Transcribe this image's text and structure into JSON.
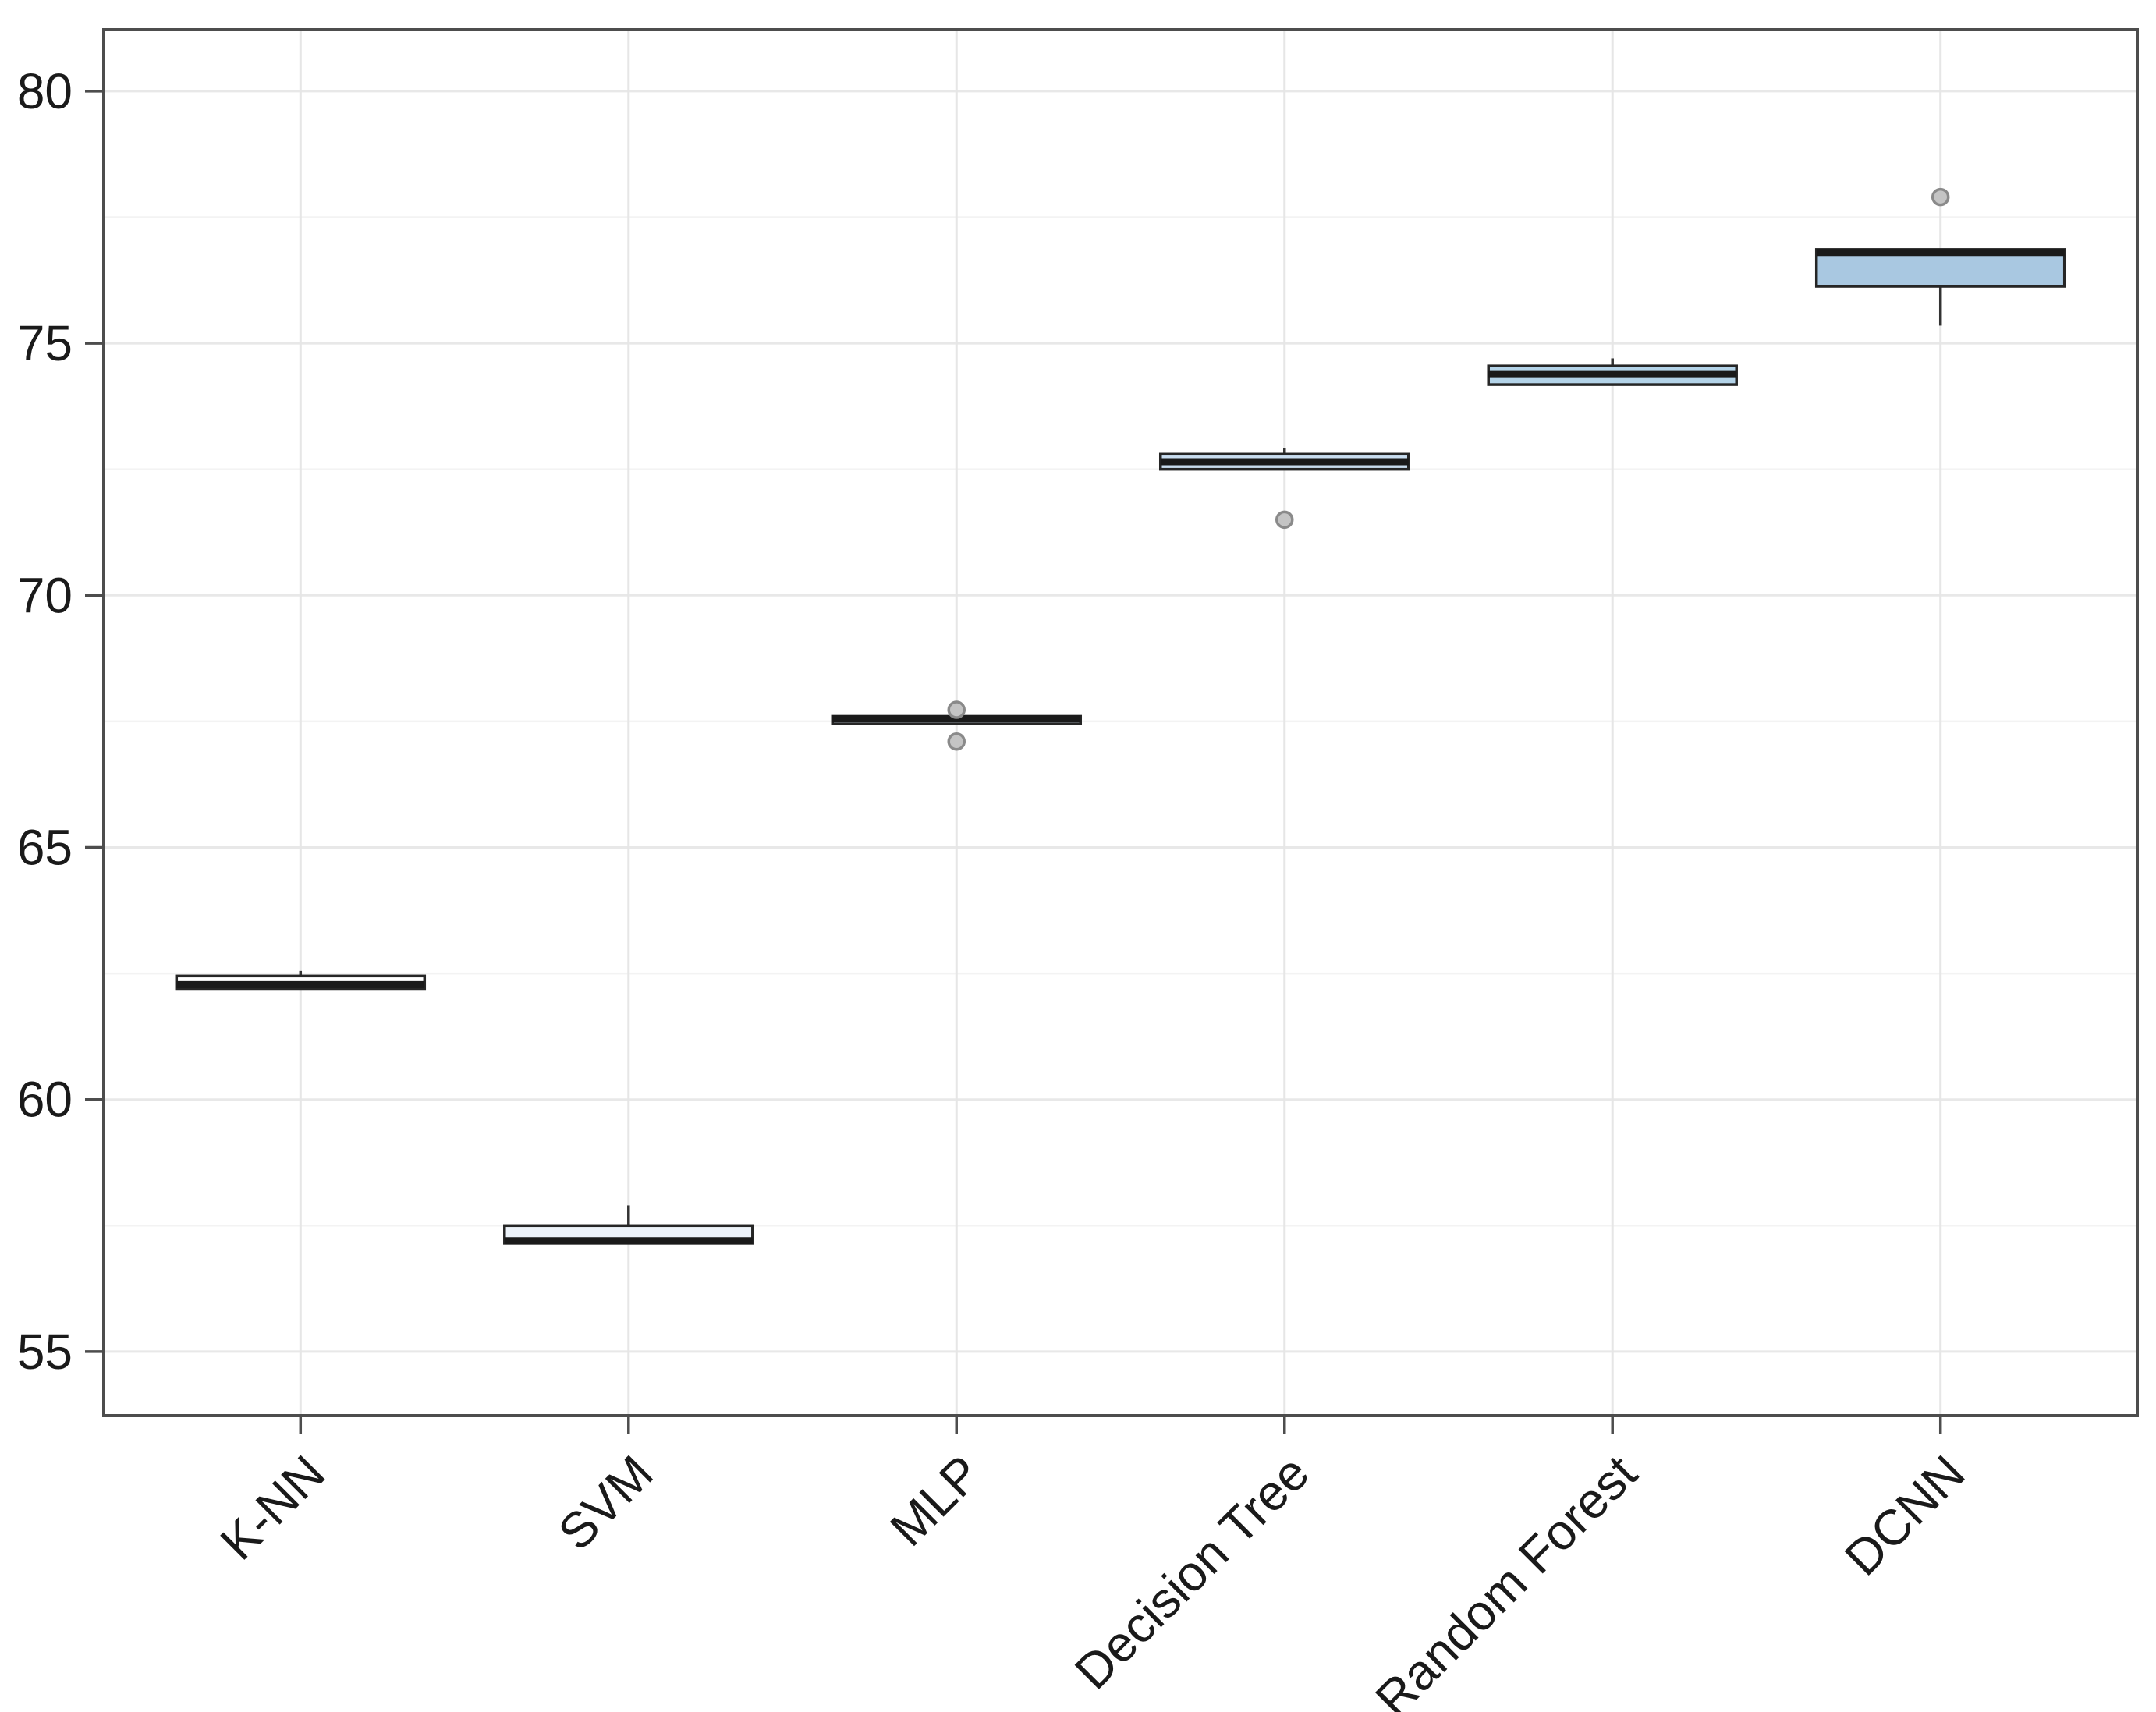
{
  "chart_data": {
    "type": "boxplot",
    "title": "",
    "xlabel": "",
    "ylabel": "",
    "categories": [
      "K-NN",
      "SVM",
      "MLP",
      "Decision Tree",
      "Random Forest",
      "DCNN"
    ],
    "series": [
      {
        "name": "K-NN",
        "whisker_low": 62.2,
        "q1": 62.2,
        "median": 62.28,
        "q3": 62.45,
        "whisker_high": 62.55,
        "outliers": [],
        "fill": "#ffffff"
      },
      {
        "name": "SVM",
        "whisker_low": 57.15,
        "q1": 57.15,
        "median": 57.2,
        "q3": 57.5,
        "whisker_high": 57.9,
        "outliers": [],
        "fill": "#ecf2f9"
      },
      {
        "name": "MLP",
        "whisker_low": 67.45,
        "q1": 67.45,
        "median": 67.55,
        "q3": 67.6,
        "whisker_high": 67.6,
        "outliers": [
          67.73,
          67.1
        ],
        "fill": "#d7e4f1"
      },
      {
        "name": "Decision Tree",
        "whisker_low": 72.5,
        "q1": 72.5,
        "median": 72.65,
        "q3": 72.8,
        "whisker_high": 72.92,
        "outliers": [
          71.5
        ],
        "fill": "#c8dcee"
      },
      {
        "name": "Random Forest",
        "whisker_low": 74.18,
        "q1": 74.18,
        "median": 74.38,
        "q3": 74.55,
        "whisker_high": 74.7,
        "outliers": [],
        "fill": "#b3d3e8"
      },
      {
        "name": "DCNN",
        "whisker_low": 75.35,
        "q1": 76.13,
        "median": 76.8,
        "q3": 76.86,
        "whisker_high": 76.86,
        "outliers": [
          77.9
        ],
        "fill": "#a9c8e1"
      }
    ],
    "yticks": [
      55,
      60,
      65,
      70,
      75,
      80
    ],
    "minor_yticks": [
      57.5,
      62.5,
      67.5,
      72.5,
      77.5
    ],
    "ylim": [
      53.73,
      81.22
    ],
    "legend": "none",
    "grid": {
      "major_color": "#e8e8e8",
      "minor_color": "#f3f3f3",
      "vertical_color": "#e6e6e6"
    },
    "styles": {
      "panel_border_color": "#4d4d4d",
      "tick_color": "#4d4d4d",
      "text_color": "#1a1a1a",
      "box_border_color": "#262626",
      "median_color": "#1a1a1a",
      "whisker_color": "#333333",
      "outlier_fill": "#c4c4c4",
      "outlier_stroke": "#8a8a8a",
      "background": "#ffffff"
    }
  }
}
